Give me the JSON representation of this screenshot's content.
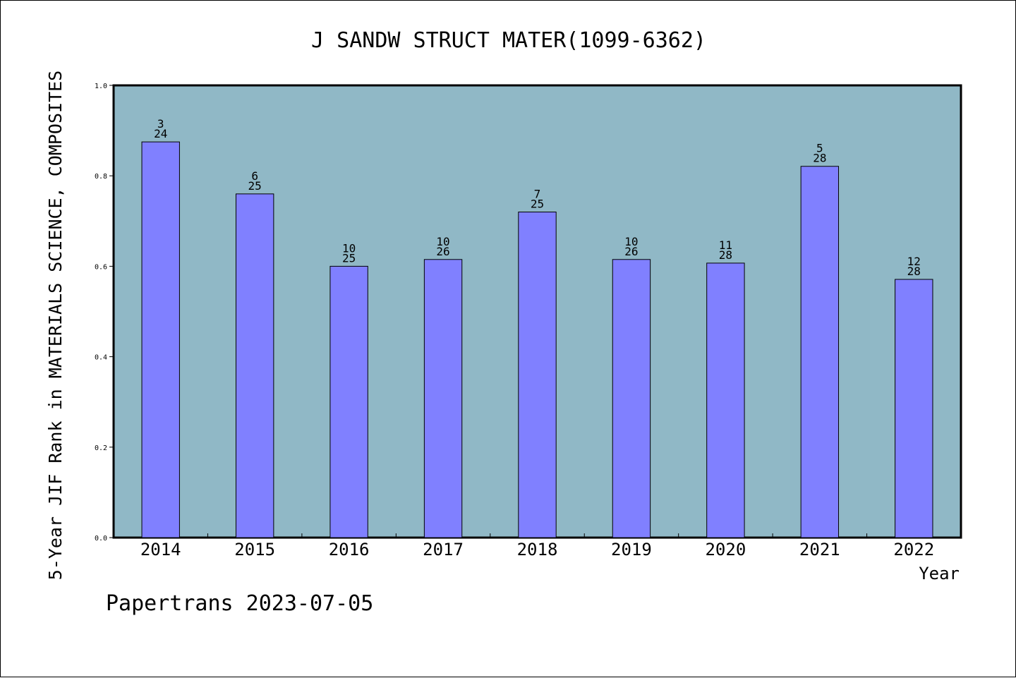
{
  "chart_data": {
    "type": "bar",
    "title": "J SANDW STRUCT MATER(1099-6362)",
    "xlabel": "Year",
    "ylabel": "5-Year JIF Rank in MATERIALS SCIENCE, COMPOSITES",
    "categories": [
      "2014",
      "2015",
      "2016",
      "2017",
      "2018",
      "2019",
      "2020",
      "2021",
      "2022"
    ],
    "values": [
      0.875,
      0.76,
      0.6,
      0.615,
      0.72,
      0.615,
      0.607,
      0.821,
      0.571
    ],
    "rank": [
      "3",
      "6",
      "10",
      "10",
      "7",
      "10",
      "11",
      "5",
      "12"
    ],
    "total": [
      "24",
      "25",
      "25",
      "26",
      "25",
      "26",
      "28",
      "28",
      "28"
    ],
    "ylim": [
      0,
      1.0
    ],
    "yticks": [
      "0.0",
      "0.2",
      "0.4",
      "0.6",
      "0.8",
      "1.0"
    ],
    "grid": false,
    "colors": {
      "plot_bg": "#90b8c6",
      "bar": "#8080ff",
      "bar_edge": "#000000"
    }
  },
  "footer": "Papertrans 2023-07-05"
}
